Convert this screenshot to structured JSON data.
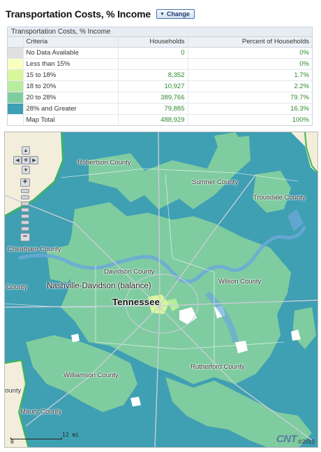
{
  "header": {
    "title": "Transportation Costs, % Income",
    "change_label": "Change"
  },
  "table": {
    "title": "Transportation Costs, % Income",
    "columns": [
      "Criteria",
      "Households",
      "Percent of Households"
    ],
    "rows": [
      {
        "swatch": "#e0e0e0",
        "criteria": "No Data Available",
        "households": "0",
        "percent": "0%"
      },
      {
        "swatch": "#f8ffc0",
        "criteria": "Less than 15%",
        "households": "",
        "percent": "0%"
      },
      {
        "swatch": "#d8f79a",
        "criteria": "15 to 18%",
        "households": "8,352",
        "percent": "1.7%"
      },
      {
        "swatch": "#b8ec9e",
        "criteria": "18 to 20%",
        "households": "10,927",
        "percent": "2.2%"
      },
      {
        "swatch": "#7fcca0",
        "criteria": "20 to 28%",
        "households": "389,766",
        "percent": "79.7%"
      },
      {
        "swatch": "#3f9fb3",
        "criteria": "28% and Greater",
        "households": "79,885",
        "percent": "16.3%"
      },
      {
        "swatch": "#ffffff",
        "criteria": "Map Total",
        "households": "488,929",
        "percent": "100%"
      }
    ]
  },
  "map": {
    "labels": {
      "robertson": "Robertson County",
      "sumner": "Sumner County",
      "trousdale": "Trousdale County",
      "cheatham": "Cheatham County",
      "davidson": "Davidson County",
      "nashville": "Nashville-Davidson (balance)",
      "wilson": "Wilson County",
      "tennessee": "Tennessee",
      "county_left": "County",
      "rutherford": "Rutherford County",
      "williamson": "Williamson County",
      "ounty": "ounty",
      "maury": "Maury County"
    },
    "scale": {
      "zero": "0",
      "distance": "12 mi"
    },
    "logo": "CNT",
    "copyright": "©2010"
  }
}
